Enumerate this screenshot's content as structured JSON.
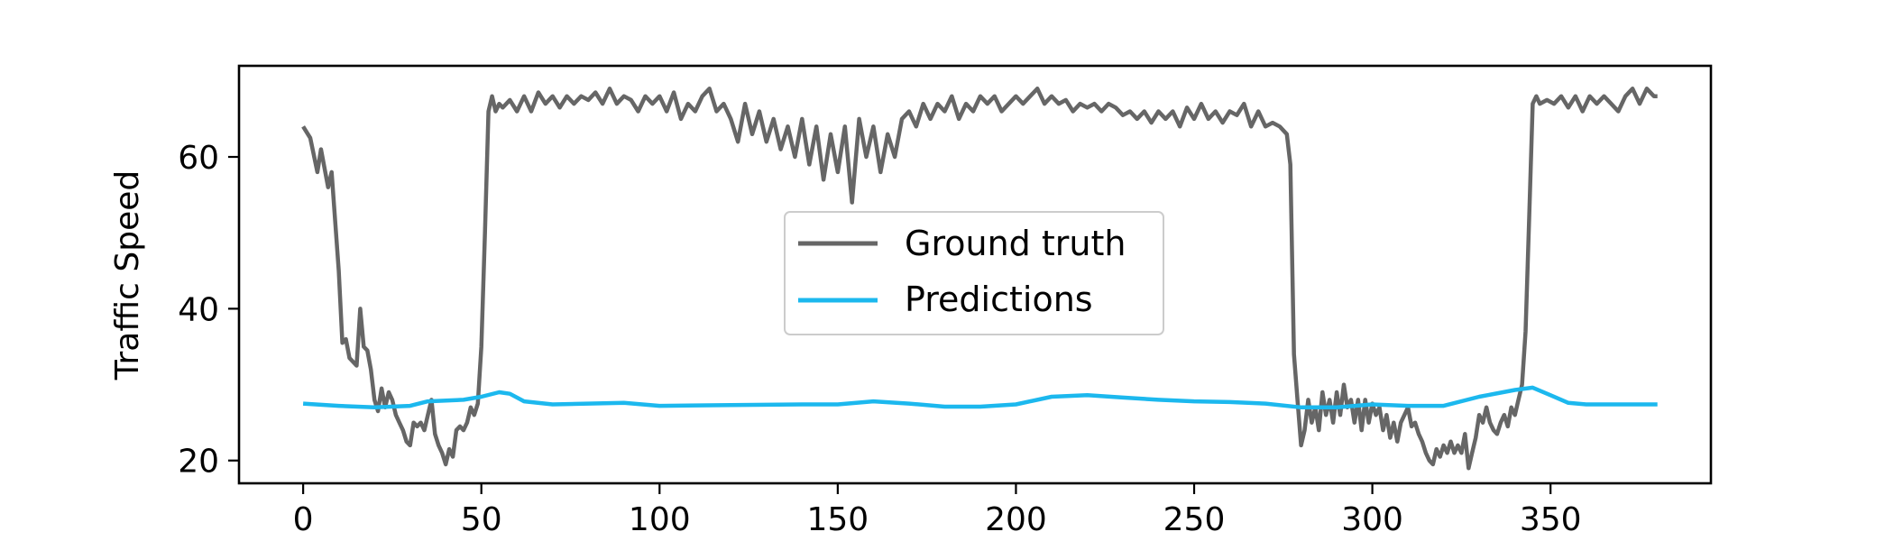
{
  "chart_data": {
    "type": "line",
    "xlabel": "",
    "ylabel": "Traffic Speed",
    "xlim": [
      -18,
      395
    ],
    "ylim": [
      17,
      72
    ],
    "xticks": [
      0,
      50,
      100,
      150,
      200,
      250,
      300,
      350
    ],
    "yticks": [
      20,
      40,
      60
    ],
    "grid": false,
    "legend": {
      "placement": "center",
      "entries": [
        "Ground truth",
        "Predictions"
      ]
    },
    "series": [
      {
        "name": "Ground truth",
        "color": "#666666",
        "points": [
          [
            0,
            64
          ],
          [
            2,
            62.5
          ],
          [
            4,
            58
          ],
          [
            5,
            61
          ],
          [
            7,
            56
          ],
          [
            8,
            58
          ],
          [
            10,
            45
          ],
          [
            11,
            35.5
          ],
          [
            12,
            36
          ],
          [
            13,
            33.5
          ],
          [
            14,
            33
          ],
          [
            15,
            32.5
          ],
          [
            16,
            40
          ],
          [
            17,
            35
          ],
          [
            18,
            34.5
          ],
          [
            19,
            32
          ],
          [
            20,
            28
          ],
          [
            21,
            26.5
          ],
          [
            22,
            29.5
          ],
          [
            23,
            27
          ],
          [
            24,
            29
          ],
          [
            25,
            28
          ],
          [
            26,
            26
          ],
          [
            27,
            25
          ],
          [
            28,
            24
          ],
          [
            29,
            22.5
          ],
          [
            30,
            22
          ],
          [
            31,
            25
          ],
          [
            32,
            24.5
          ],
          [
            33,
            25
          ],
          [
            34,
            24
          ],
          [
            35,
            26
          ],
          [
            36,
            28
          ],
          [
            37,
            23.5
          ],
          [
            38,
            22
          ],
          [
            39,
            21
          ],
          [
            40,
            19.5
          ],
          [
            41,
            21.5
          ],
          [
            42,
            20.5
          ],
          [
            43,
            24
          ],
          [
            44,
            24.5
          ],
          [
            45,
            24
          ],
          [
            46,
            25
          ],
          [
            47,
            27
          ],
          [
            48,
            26
          ],
          [
            49,
            27.5
          ],
          [
            50,
            35
          ],
          [
            51,
            50
          ],
          [
            52,
            66
          ],
          [
            53,
            68
          ],
          [
            54,
            66
          ],
          [
            55,
            67
          ],
          [
            56,
            66.5
          ],
          [
            58,
            67.5
          ],
          [
            60,
            66
          ],
          [
            62,
            68
          ],
          [
            64,
            66
          ],
          [
            66,
            68.5
          ],
          [
            68,
            67
          ],
          [
            70,
            68
          ],
          [
            72,
            66.5
          ],
          [
            74,
            68
          ],
          [
            76,
            67
          ],
          [
            78,
            68
          ],
          [
            80,
            67.5
          ],
          [
            82,
            68.5
          ],
          [
            84,
            67
          ],
          [
            86,
            69
          ],
          [
            88,
            67
          ],
          [
            90,
            68
          ],
          [
            92,
            67.5
          ],
          [
            94,
            66
          ],
          [
            96,
            68
          ],
          [
            98,
            67
          ],
          [
            100,
            68
          ],
          [
            102,
            66
          ],
          [
            104,
            68.5
          ],
          [
            106,
            65
          ],
          [
            108,
            67
          ],
          [
            110,
            66
          ],
          [
            112,
            68
          ],
          [
            114,
            69
          ],
          [
            116,
            66
          ],
          [
            118,
            67
          ],
          [
            120,
            65
          ],
          [
            122,
            62
          ],
          [
            124,
            67
          ],
          [
            126,
            63
          ],
          [
            128,
            66
          ],
          [
            130,
            62
          ],
          [
            132,
            65
          ],
          [
            134,
            61
          ],
          [
            136,
            64
          ],
          [
            138,
            60
          ],
          [
            140,
            65
          ],
          [
            142,
            59
          ],
          [
            144,
            64
          ],
          [
            146,
            57
          ],
          [
            148,
            63
          ],
          [
            150,
            58
          ],
          [
            152,
            64
          ],
          [
            154,
            54
          ],
          [
            156,
            65
          ],
          [
            158,
            60
          ],
          [
            160,
            64
          ],
          [
            162,
            58
          ],
          [
            164,
            63
          ],
          [
            166,
            60
          ],
          [
            168,
            65
          ],
          [
            170,
            66
          ],
          [
            172,
            64
          ],
          [
            174,
            67
          ],
          [
            176,
            65
          ],
          [
            178,
            67
          ],
          [
            180,
            66
          ],
          [
            182,
            68
          ],
          [
            184,
            65
          ],
          [
            186,
            67
          ],
          [
            188,
            66
          ],
          [
            190,
            68
          ],
          [
            192,
            67
          ],
          [
            194,
            68
          ],
          [
            196,
            66
          ],
          [
            198,
            67
          ],
          [
            200,
            68
          ],
          [
            202,
            67
          ],
          [
            204,
            68
          ],
          [
            206,
            69
          ],
          [
            208,
            67
          ],
          [
            210,
            68
          ],
          [
            212,
            67
          ],
          [
            214,
            67.5
          ],
          [
            216,
            66
          ],
          [
            218,
            67
          ],
          [
            220,
            66.5
          ],
          [
            222,
            67
          ],
          [
            224,
            66
          ],
          [
            226,
            67
          ],
          [
            228,
            66.5
          ],
          [
            230,
            65.5
          ],
          [
            232,
            66
          ],
          [
            234,
            65
          ],
          [
            236,
            66
          ],
          [
            238,
            64.5
          ],
          [
            240,
            66
          ],
          [
            242,
            65
          ],
          [
            244,
            66
          ],
          [
            246,
            64
          ],
          [
            248,
            66.5
          ],
          [
            250,
            65
          ],
          [
            252,
            67
          ],
          [
            254,
            65
          ],
          [
            256,
            66
          ],
          [
            258,
            64.5
          ],
          [
            260,
            66
          ],
          [
            262,
            65.5
          ],
          [
            264,
            67
          ],
          [
            266,
            64
          ],
          [
            268,
            66
          ],
          [
            270,
            64
          ],
          [
            272,
            64.5
          ],
          [
            274,
            64
          ],
          [
            276,
            63
          ],
          [
            277,
            59
          ],
          [
            278,
            34
          ],
          [
            279,
            28
          ],
          [
            280,
            22
          ],
          [
            281,
            24
          ],
          [
            282,
            28
          ],
          [
            283,
            25
          ],
          [
            284,
            27
          ],
          [
            285,
            24
          ],
          [
            286,
            29
          ],
          [
            287,
            26
          ],
          [
            288,
            28
          ],
          [
            289,
            25
          ],
          [
            290,
            29
          ],
          [
            291,
            26
          ],
          [
            292,
            30
          ],
          [
            293,
            27
          ],
          [
            294,
            28
          ],
          [
            295,
            25
          ],
          [
            296,
            28
          ],
          [
            297,
            24
          ],
          [
            298,
            28
          ],
          [
            299,
            25
          ],
          [
            300,
            27.5
          ],
          [
            301,
            26
          ],
          [
            302,
            27
          ],
          [
            303,
            24
          ],
          [
            304,
            26
          ],
          [
            305,
            23
          ],
          [
            306,
            25
          ],
          [
            307,
            22.5
          ],
          [
            308,
            25
          ],
          [
            309,
            26
          ],
          [
            310,
            27
          ],
          [
            311,
            24.5
          ],
          [
            312,
            25
          ],
          [
            313,
            23.5
          ],
          [
            314,
            22.5
          ],
          [
            315,
            21
          ],
          [
            316,
            20
          ],
          [
            317,
            19.5
          ],
          [
            318,
            21.5
          ],
          [
            319,
            20.5
          ],
          [
            320,
            22
          ],
          [
            321,
            21
          ],
          [
            322,
            22.5
          ],
          [
            323,
            21
          ],
          [
            324,
            22
          ],
          [
            325,
            21
          ],
          [
            326,
            23.5
          ],
          [
            327,
            19
          ],
          [
            328,
            21
          ],
          [
            329,
            23
          ],
          [
            330,
            26
          ],
          [
            331,
            25
          ],
          [
            332,
            27
          ],
          [
            333,
            25
          ],
          [
            334,
            24
          ],
          [
            335,
            23.5
          ],
          [
            336,
            25
          ],
          [
            337,
            26
          ],
          [
            338,
            24.5
          ],
          [
            339,
            27
          ],
          [
            340,
            26
          ],
          [
            341,
            28
          ],
          [
            342,
            30
          ],
          [
            343,
            37
          ],
          [
            344,
            52
          ],
          [
            345,
            67
          ],
          [
            346,
            68
          ],
          [
            347,
            67
          ],
          [
            349,
            67.5
          ],
          [
            351,
            67
          ],
          [
            353,
            68
          ],
          [
            355,
            66.5
          ],
          [
            357,
            68
          ],
          [
            359,
            66
          ],
          [
            361,
            68
          ],
          [
            363,
            67
          ],
          [
            365,
            68
          ],
          [
            367,
            67
          ],
          [
            369,
            66
          ],
          [
            371,
            68
          ],
          [
            373,
            69
          ],
          [
            375,
            67
          ],
          [
            377,
            69
          ],
          [
            379,
            68
          ],
          [
            380,
            68
          ]
        ]
      },
      {
        "name": "Predictions",
        "color": "#1cb8ee",
        "points": [
          [
            0,
            27.5
          ],
          [
            10,
            27.2
          ],
          [
            20,
            27
          ],
          [
            30,
            27.2
          ],
          [
            35,
            27.8
          ],
          [
            45,
            28
          ],
          [
            50,
            28.4
          ],
          [
            55,
            29
          ],
          [
            58,
            28.8
          ],
          [
            62,
            27.8
          ],
          [
            70,
            27.4
          ],
          [
            80,
            27.5
          ],
          [
            90,
            27.6
          ],
          [
            100,
            27.2
          ],
          [
            120,
            27.3
          ],
          [
            140,
            27.4
          ],
          [
            150,
            27.4
          ],
          [
            160,
            27.8
          ],
          [
            170,
            27.5
          ],
          [
            180,
            27.1
          ],
          [
            190,
            27.1
          ],
          [
            200,
            27.4
          ],
          [
            210,
            28.4
          ],
          [
            220,
            28.6
          ],
          [
            230,
            28.3
          ],
          [
            240,
            28
          ],
          [
            250,
            27.8
          ],
          [
            260,
            27.7
          ],
          [
            270,
            27.5
          ],
          [
            280,
            27
          ],
          [
            290,
            27
          ],
          [
            300,
            27.4
          ],
          [
            310,
            27.2
          ],
          [
            320,
            27.2
          ],
          [
            330,
            28.4
          ],
          [
            340,
            29.3
          ],
          [
            345,
            29.6
          ],
          [
            350,
            28.6
          ],
          [
            355,
            27.6
          ],
          [
            360,
            27.4
          ],
          [
            370,
            27.4
          ],
          [
            380,
            27.4
          ]
        ]
      }
    ]
  }
}
